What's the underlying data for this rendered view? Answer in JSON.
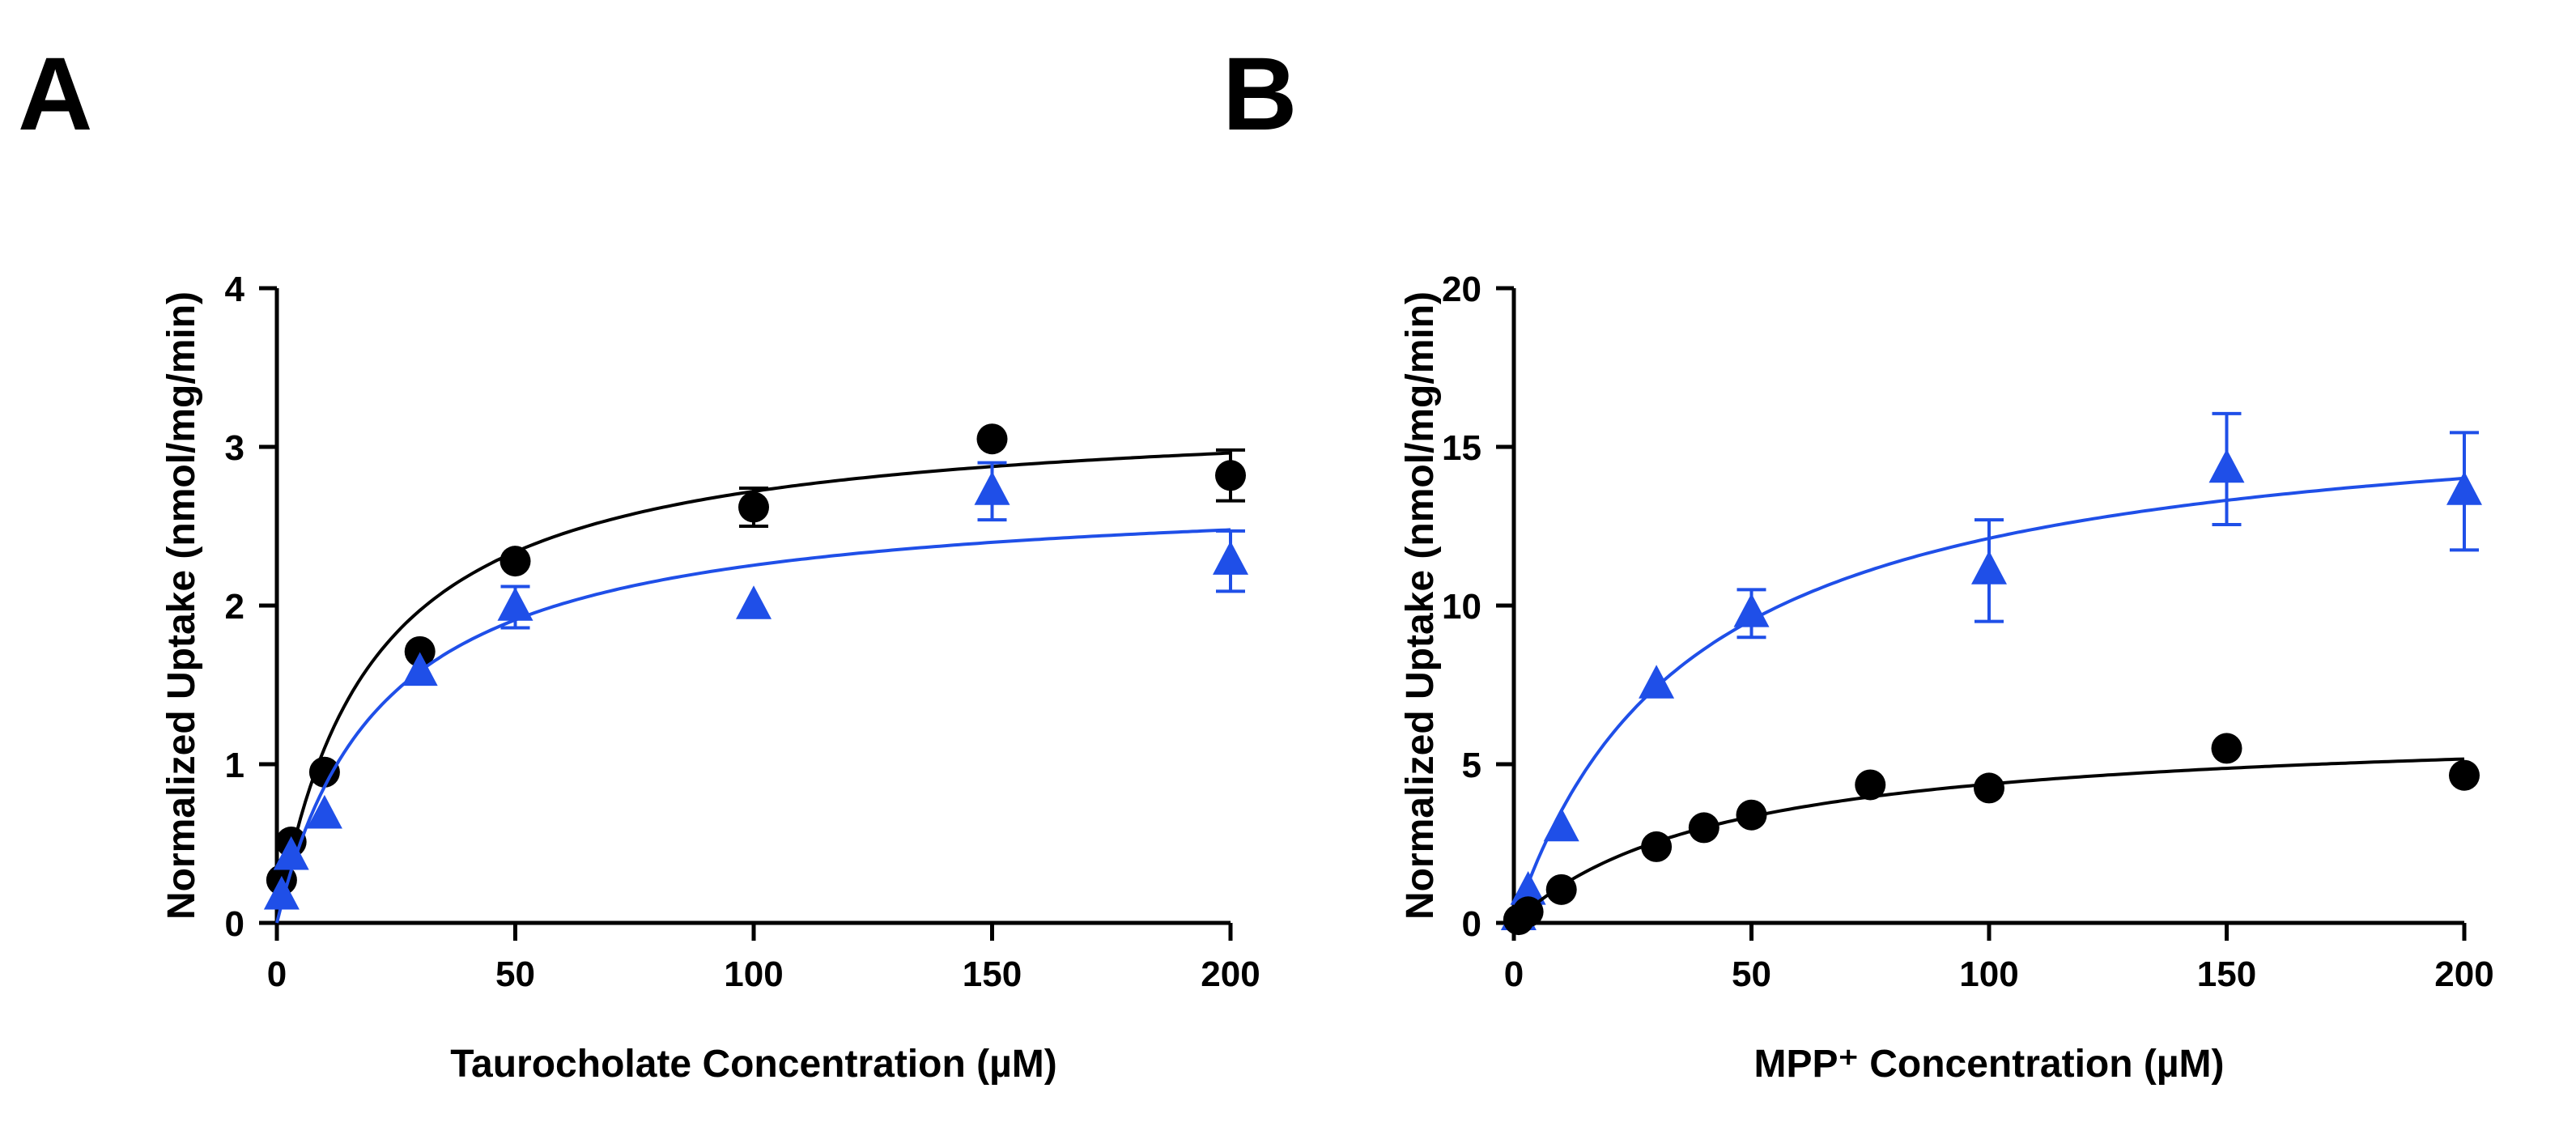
{
  "chart_data": [
    {
      "type": "scatter",
      "panel_label": "A",
      "xlabel": "Taurocholate Concentration (µM)",
      "ylabel": "Normalized Uptake (nmol/mg/min)",
      "xlim": [
        0,
        200
      ],
      "ylim": [
        0,
        4
      ],
      "xticks": [
        0,
        50,
        100,
        150,
        200
      ],
      "yticks": [
        0,
        1,
        2,
        3,
        4
      ],
      "grid": false,
      "legend": "none",
      "series": [
        {
          "marker": "circle",
          "color": "#000000",
          "x": [
            1,
            3,
            10,
            30,
            50,
            100,
            150,
            200
          ],
          "y": [
            0.27,
            0.51,
            0.95,
            1.71,
            2.28,
            2.62,
            3.05,
            2.82
          ],
          "err": [
            0,
            0,
            0,
            0,
            0,
            0.12,
            0,
            0.16
          ],
          "fit": {
            "model": "michaelis-menten",
            "vmax": 3.25,
            "km": 19.5
          }
        },
        {
          "marker": "triangle",
          "color": "#1f4fe8",
          "x": [
            1,
            3,
            10,
            30,
            50,
            100,
            150,
            200
          ],
          "y": [
            0.17,
            0.42,
            0.68,
            1.58,
            1.99,
            2.0,
            2.72,
            2.28
          ],
          "err": [
            0,
            0,
            0,
            0,
            0.13,
            0,
            0.18,
            0.19
          ],
          "fit": {
            "model": "michaelis-menten",
            "vmax": 2.75,
            "km": 22
          }
        }
      ]
    },
    {
      "type": "scatter",
      "panel_label": "B",
      "xlabel": "MPP⁺ Concentration (µM)",
      "ylabel": "Normalized Uptake (nmol/mg/min)",
      "xlim": [
        0,
        200
      ],
      "ylim": [
        0,
        20
      ],
      "xticks": [
        0,
        50,
        100,
        150,
        200
      ],
      "yticks": [
        0,
        5,
        10,
        15,
        20
      ],
      "grid": false,
      "legend": "none",
      "series": [
        {
          "marker": "triangle",
          "color": "#1f4fe8",
          "x": [
            1,
            3,
            10,
            30,
            50,
            100,
            150,
            200
          ],
          "y": [
            0.2,
            1.0,
            3.0,
            7.5,
            9.75,
            11.1,
            14.3,
            13.6
          ],
          "err": [
            0,
            0,
            0,
            0,
            0.75,
            1.6,
            1.75,
            1.85
          ],
          "fit": {
            "model": "michaelis-menten",
            "vmax": 16.6,
            "km": 37
          }
        },
        {
          "marker": "circle",
          "color": "#000000",
          "x": [
            1,
            3,
            10,
            30,
            40,
            50,
            75,
            100,
            150,
            200
          ],
          "y": [
            0.1,
            0.35,
            1.05,
            2.4,
            3.0,
            3.4,
            4.35,
            4.25,
            5.5,
            4.65
          ],
          "err": [
            0,
            0,
            0,
            0,
            0,
            0,
            0,
            0,
            0,
            0
          ],
          "fit": {
            "model": "michaelis-menten",
            "vmax": 6.3,
            "km": 44
          }
        }
      ]
    }
  ]
}
